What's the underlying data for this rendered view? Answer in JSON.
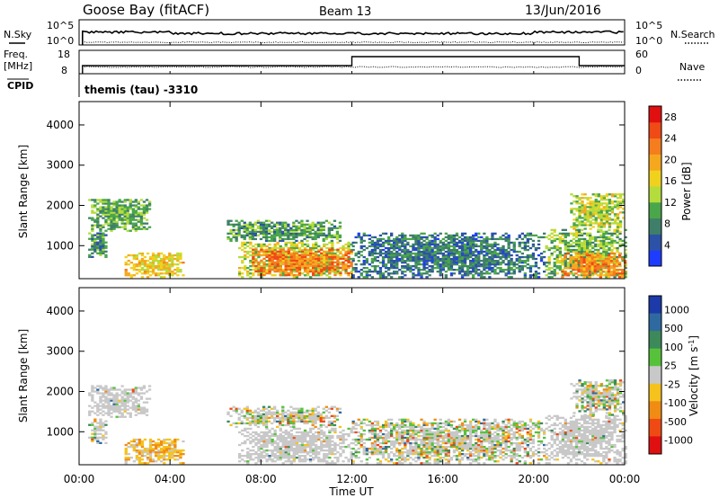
{
  "header": {
    "station": "Goose Bay (fitACF)",
    "beam": "Beam 13",
    "date": "13/Jun/2016"
  },
  "summary": {
    "nsky_label": "N.Sky",
    "nsky_ticks": [
      "10^5",
      "10^0"
    ],
    "nsearch_label": "N.Search",
    "nsearch_ticks": [
      "10^5",
      "10^0"
    ],
    "freq_label_1": "Freq.",
    "freq_label_2": "[MHz]",
    "freq_ticks": [
      "18",
      "8"
    ],
    "nave_label": "Nave",
    "nave_ticks": [
      "60",
      "0"
    ],
    "cpid_label": "CPID",
    "cpid_text": "themis (tau) -3310",
    "freq_step": {
      "start_hour": 12.0,
      "end_hour": 22.0
    }
  },
  "xaxis": {
    "label": "Time UT",
    "ticks": [
      "00:00",
      "04:00",
      "08:00",
      "12:00",
      "16:00",
      "20:00",
      "00:00"
    ],
    "tick_hours": [
      0,
      4,
      8,
      12,
      16,
      20,
      24
    ]
  },
  "chart_data": [
    {
      "type": "heatmap",
      "title": "",
      "quantity": "Power",
      "xlabel": "Time UT",
      "ylabel": "Slant Range [km]",
      "yticks": [
        "4000",
        "3000",
        "2000",
        "1000"
      ],
      "ytick_values": [
        4000,
        3000,
        2000,
        1000
      ],
      "xlim_hours": [
        0,
        24
      ],
      "ylim_km": [
        180,
        4580
      ],
      "colorbar_label": "Power [dB]",
      "colorbar_ticks": [
        "28",
        "24",
        "20",
        "16",
        "12",
        "8",
        "4"
      ],
      "colorbar_tick_values": [
        28,
        24,
        20,
        16,
        12,
        8,
        4
      ],
      "colorbar_range": [
        0,
        30
      ],
      "colors": [
        "#1e3cff",
        "#2c52a8",
        "#3f7f6a",
        "#4aa64a",
        "#b4dc3c",
        "#f0d21e",
        "#f5a81e",
        "#f57d1e",
        "#f04a16",
        "#e01010"
      ],
      "regions": [
        {
          "t": [
            0.4,
            3.1
          ],
          "r": [
            1350,
            2150
          ],
          "value": 10
        },
        {
          "t": [
            0.4,
            1.2
          ],
          "r": [
            700,
            1300
          ],
          "value": 8
        },
        {
          "t": [
            2.0,
            4.6
          ],
          "r": [
            200,
            800
          ],
          "value": 17
        },
        {
          "t": [
            7.0,
            12.0
          ],
          "r": [
            200,
            1100
          ],
          "value": 14
        },
        {
          "t": [
            7.6,
            12.0
          ],
          "r": [
            250,
            900
          ],
          "value": 23
        },
        {
          "t": [
            6.5,
            11.5
          ],
          "r": [
            1100,
            1600
          ],
          "value": 9
        },
        {
          "t": [
            12.0,
            20.5
          ],
          "r": [
            200,
            1300
          ],
          "value": 6
        },
        {
          "t": [
            20.5,
            24.0
          ],
          "r": [
            200,
            1400
          ],
          "value": 11
        },
        {
          "t": [
            21.2,
            24.0
          ],
          "r": [
            200,
            800
          ],
          "value": 22
        },
        {
          "t": [
            21.6,
            24.0
          ],
          "r": [
            1400,
            2300
          ],
          "value": 14
        }
      ]
    },
    {
      "type": "heatmap",
      "title": "",
      "quantity": "Velocity",
      "xlabel": "Time UT",
      "ylabel": "Slant Range [km]",
      "yticks": [
        "4000",
        "3000",
        "2000",
        "1000"
      ],
      "ytick_values": [
        4000,
        3000,
        2000,
        1000
      ],
      "xlim_hours": [
        0,
        24
      ],
      "ylim_km": [
        180,
        4580
      ],
      "colorbar_label": "Velocity [m s^-1]",
      "colorbar_ticks": [
        "1000",
        "500",
        "100",
        "25",
        "-25",
        "-100",
        "-500",
        "-1000"
      ],
      "colors": [
        "#1c3aa8",
        "#2e6aa0",
        "#3c8a5a",
        "#56c23a",
        "#c8c8c8",
        "#f5c21e",
        "#f08c14",
        "#f04a14",
        "#e01010"
      ],
      "regions": [
        {
          "t": [
            0.4,
            3.1
          ],
          "r": [
            1350,
            2150
          ],
          "class": "grey"
        },
        {
          "t": [
            0.4,
            1.2
          ],
          "r": [
            700,
            1300
          ],
          "class": "mixed"
        },
        {
          "t": [
            2.0,
            4.6
          ],
          "r": [
            200,
            800
          ],
          "class": "warm"
        },
        {
          "t": [
            7.0,
            12.0
          ],
          "r": [
            200,
            1100
          ],
          "class": "grey"
        },
        {
          "t": [
            6.5,
            11.5
          ],
          "r": [
            1100,
            1600
          ],
          "class": "mixed"
        },
        {
          "t": [
            12.0,
            20.5
          ],
          "r": [
            200,
            1300
          ],
          "class": "mixed"
        },
        {
          "t": [
            20.5,
            24.0
          ],
          "r": [
            200,
            1400
          ],
          "class": "grey"
        },
        {
          "t": [
            21.6,
            24.0
          ],
          "r": [
            1400,
            2300
          ],
          "class": "mixed"
        }
      ]
    }
  ]
}
